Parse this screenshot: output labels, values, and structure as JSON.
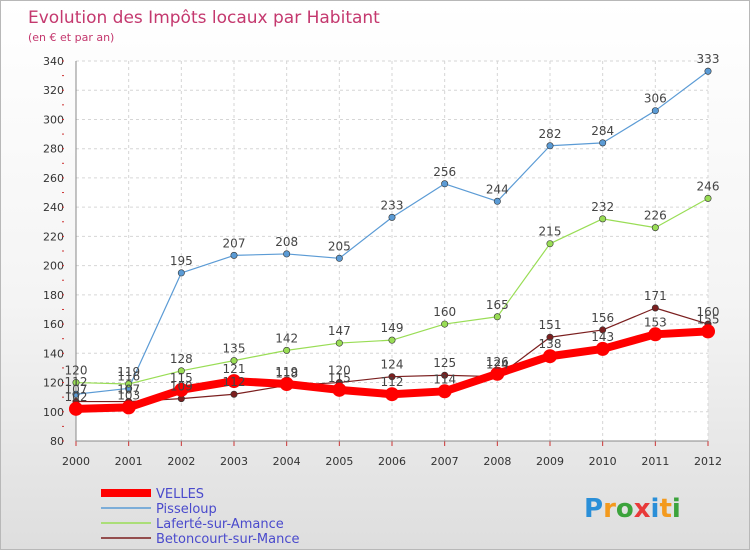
{
  "chart_data": {
    "type": "line",
    "title": "Evolution des Impôts locaux par Habitant",
    "subtitle": "(en € et par an)",
    "xlabel": "",
    "ylabel": "",
    "x": [
      "2000",
      "2001",
      "2002",
      "2003",
      "2004",
      "2005",
      "2006",
      "2007",
      "2008",
      "2009",
      "2010",
      "2011",
      "2012"
    ],
    "yticks": [
      80,
      100,
      120,
      140,
      160,
      180,
      200,
      220,
      240,
      260,
      280,
      300,
      320,
      340
    ],
    "ylim": [
      80,
      340
    ],
    "grid": true,
    "legend_position": "bottom-left",
    "series": [
      {
        "name": "VELLES",
        "color": "#ff0000",
        "values": [
          102,
          103,
          115,
          121,
          119,
          115,
          112,
          114,
          126,
          138,
          143,
          153,
          155
        ]
      },
      {
        "name": "Pisseloup",
        "color": "#5b9bd5",
        "values": [
          112,
          116,
          195,
          207,
          208,
          205,
          233,
          256,
          244,
          282,
          284,
          306,
          333
        ]
      },
      {
        "name": "Laferté-sur-Amance",
        "color": "#99dd55",
        "values": [
          120,
          119,
          128,
          135,
          142,
          147,
          149,
          160,
          165,
          215,
          232,
          226,
          246
        ]
      },
      {
        "name": "Betoncourt-sur-Mance",
        "color": "#7b1f1f",
        "values": [
          107,
          107,
          109,
          112,
          118,
          120,
          124,
          125,
          124,
          151,
          156,
          171,
          160
        ]
      }
    ]
  },
  "logo": {
    "text": "Proxiti"
  }
}
